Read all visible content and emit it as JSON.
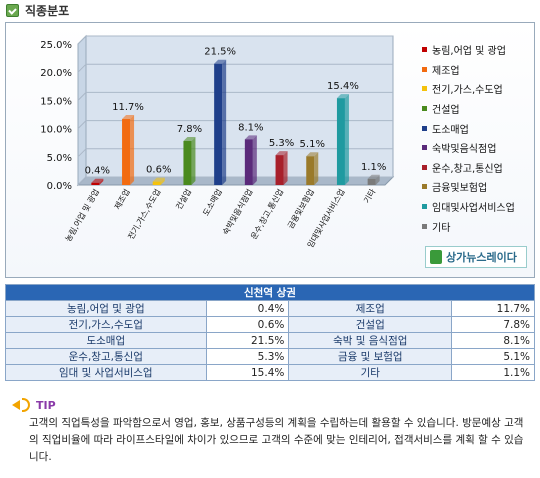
{
  "header": {
    "title": "직종분포"
  },
  "chart_data": {
    "type": "bar",
    "categories": [
      "농림,어업 및 광업",
      "제조업",
      "전기,가스,수도업",
      "건설업",
      "도소매업",
      "숙박및음식점업",
      "운수,창고,통신업",
      "금융및보험업",
      "임대및사업서비스업",
      "기타"
    ],
    "values": [
      0.4,
      11.7,
      0.6,
      7.8,
      21.5,
      8.1,
      5.3,
      5.1,
      15.4,
      1.1
    ],
    "value_labels": [
      "0.4%",
      "11.7%",
      "0.6%",
      "7.8%",
      "21.5%",
      "8.1%",
      "5.3%",
      "5.1%",
      "15.4%",
      "1.1%"
    ],
    "yticks": [
      "0.0%",
      "5.0%",
      "10.0%",
      "15.0%",
      "20.0%",
      "25.0%"
    ],
    "ylim": [
      0,
      25
    ],
    "colors": [
      "#c00000",
      "#f26b10",
      "#f4c20d",
      "#4a8a1e",
      "#1f3f8a",
      "#5a2a7a",
      "#a81f2a",
      "#9a7a2a",
      "#1f9aa0",
      "#7a7a7a"
    ],
    "legend": [
      "농림,어업 및 광업",
      "제조업",
      "전기,가스,수도업",
      "건설업",
      "도소매업",
      "숙박및음식점업",
      "운수,창고,통신업",
      "금융및보험업",
      "임대및사업서비스업",
      "기타"
    ],
    "legend_position": "right",
    "grid": true
  },
  "logo": {
    "text": "상가뉴스레이다"
  },
  "table": {
    "title": "신천역 상권",
    "rows": [
      [
        {
          "label": "농림,어업 및 광업",
          "value": "0.4%"
        },
        {
          "label": "제조업",
          "value": "11.7%"
        }
      ],
      [
        {
          "label": "전기,가스,수도업",
          "value": "0.6%"
        },
        {
          "label": "건설업",
          "value": "7.8%"
        }
      ],
      [
        {
          "label": "도소매업",
          "value": "21.5%"
        },
        {
          "label": "숙박 및 음식점업",
          "value": "8.1%"
        }
      ],
      [
        {
          "label": "운수,창고,통신업",
          "value": "5.3%"
        },
        {
          "label": "금융 및 보험업",
          "value": "5.1%"
        }
      ],
      [
        {
          "label": "임대 및 사업서비스업",
          "value": "15.4%"
        },
        {
          "label": "기타",
          "value": "1.1%"
        }
      ]
    ]
  },
  "tip": {
    "title": "TIP",
    "text": "고객의 직업특성을 파악함으로서 영업, 홍보, 상품구성등의 계획을 수립하는데 활용할 수 있습니다. 방문예상 고객의 직업비율에 따라 라이프스타일에 차이가 있으므로 고객의 수준에 맞는 인테리어, 접객서비스를 계획 할 수 있습니다."
  }
}
